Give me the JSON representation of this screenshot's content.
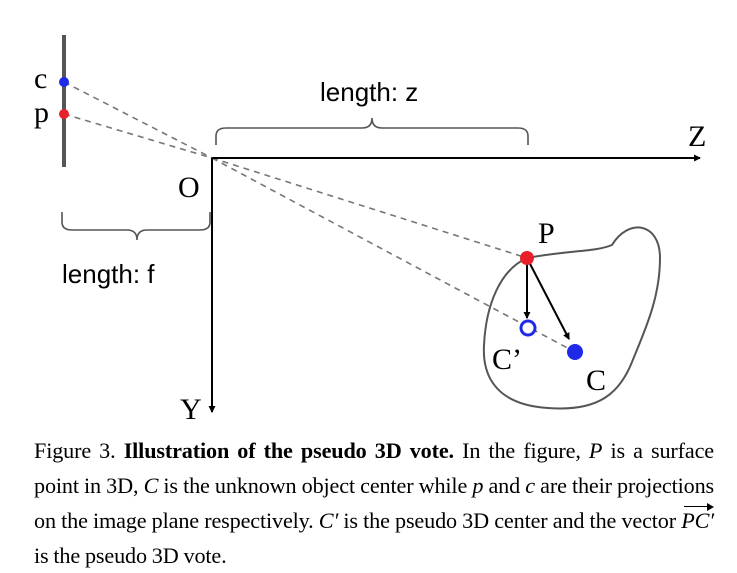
{
  "figure": {
    "labels": {
      "c_image": "c",
      "p_image": "p",
      "origin": "O",
      "z_axis": "Z",
      "y_axis": "Y",
      "length_z": "length: z",
      "length_f": "length: f",
      "point_P": "P",
      "point_C_prime": "C’",
      "point_C": "C"
    },
    "colors": {
      "red_point": "#e8202a",
      "blue_point": "#1f2ae8",
      "outline": "#555555",
      "dashes": "#777777"
    }
  },
  "caption": {
    "figure_number": "Figure 3.",
    "bold_title": "Illustration of the pseudo 3D vote.",
    "seg1": "In the figure,",
    "var_P": "P",
    "seg2": "is a surface point in 3D,",
    "var_C": "C",
    "seg3": "is the unknown object center while",
    "var_p": "p",
    "seg4": "and",
    "var_c": "c",
    "seg5": "are their projections on the image plane respectively.",
    "var_C_prime": "C′",
    "seg6": "is the pseudo 3D center and the vector",
    "var_PC_prime": "PC′",
    "seg7": "is the pseudo 3D vote."
  }
}
